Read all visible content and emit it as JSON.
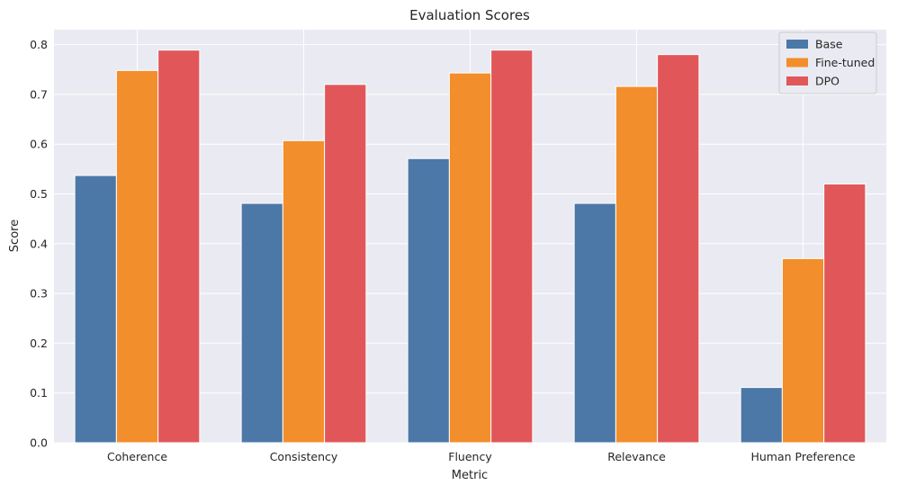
{
  "chart_data": {
    "type": "bar",
    "title": "Evaluation Scores",
    "xlabel": "Metric",
    "ylabel": "Score",
    "categories": [
      "Coherence",
      "Consistency",
      "Fluency",
      "Relevance",
      "Human Preference"
    ],
    "series": [
      {
        "name": "Base",
        "color": "#4c78a8",
        "values": [
          0.537,
          0.481,
          0.571,
          0.481,
          0.111
        ]
      },
      {
        "name": "Fine-tuned",
        "color": "#f28e2b",
        "values": [
          0.748,
          0.607,
          0.743,
          0.716,
          0.37
        ]
      },
      {
        "name": "DPO",
        "color": "#e15759",
        "values": [
          0.789,
          0.72,
          0.789,
          0.78,
          0.52
        ]
      }
    ],
    "ylim": [
      0,
      0.83
    ],
    "yticks": [
      0.0,
      0.1,
      0.2,
      0.3,
      0.4,
      0.5,
      0.6,
      0.7,
      0.8
    ],
    "ytick_labels": [
      "0.0",
      "0.1",
      "0.2",
      "0.3",
      "0.4",
      "0.5",
      "0.6",
      "0.7",
      "0.8"
    ],
    "grid": true,
    "legend_position": "top-right",
    "background_color": "#eaeaf2"
  }
}
